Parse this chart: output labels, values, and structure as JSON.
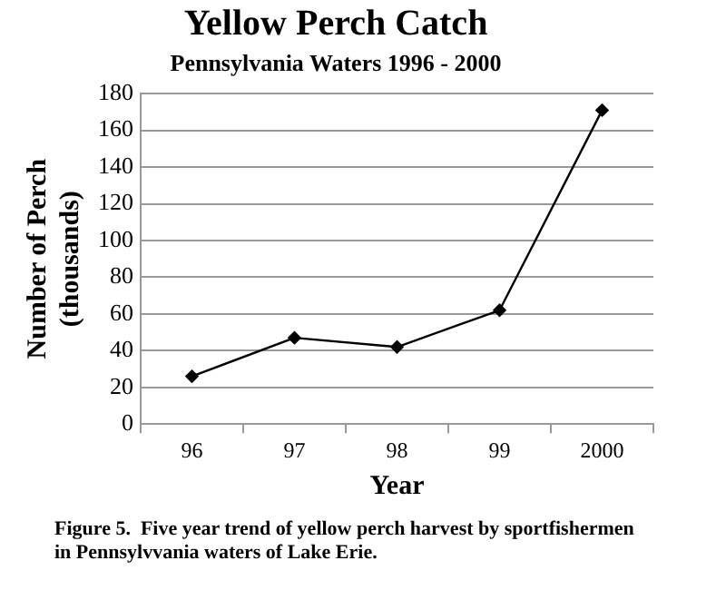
{
  "chart_data": {
    "type": "line",
    "title": "Yellow Perch Catch",
    "subtitle": "Pennsylvania Waters 1996 - 2000",
    "xlabel": "Year",
    "ylabel": "Number of Perch (thousands)",
    "categories": [
      "96",
      "97",
      "98",
      "99",
      "2000"
    ],
    "series": [
      {
        "color": "#000000",
        "values": [
          26,
          47,
          42,
          62,
          171
        ]
      }
    ],
    "ylim": [
      0,
      180
    ],
    "yticks": [
      0,
      20,
      40,
      60,
      80,
      100,
      120,
      140,
      160,
      180
    ],
    "grid": "y",
    "legend": false,
    "marker": "diamond",
    "line_style": "solid",
    "annotations": [
      "Figure 5.  Five year trend of yellow perch harvest by sportfishermen in Pennsylvvania waters of Lake Erie."
    ]
  }
}
